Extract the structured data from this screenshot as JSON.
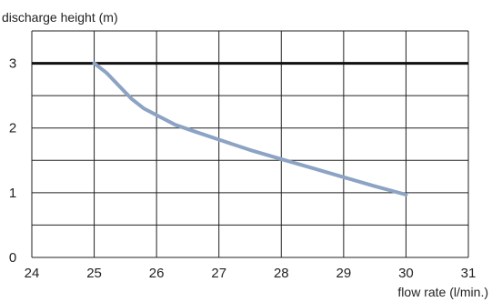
{
  "chart_data": {
    "type": "line",
    "title": "",
    "xlabel": "flow rate (l/min.)",
    "ylabel": "discharge height (m)",
    "xlim": [
      24,
      31
    ],
    "ylim": [
      0,
      3.5
    ],
    "x_ticks": [
      "24",
      "25",
      "26",
      "27",
      "28",
      "29",
      "30",
      "31"
    ],
    "y_ticks": [
      "0",
      "1",
      "2",
      "3"
    ],
    "grid": true,
    "reference_line": {
      "y": 3
    },
    "series": [
      {
        "color": "#8ca3c4",
        "points": [
          [
            25.0,
            3.0
          ],
          [
            25.2,
            2.85
          ],
          [
            25.4,
            2.65
          ],
          [
            25.6,
            2.45
          ],
          [
            25.8,
            2.3
          ],
          [
            26.0,
            2.2
          ],
          [
            26.3,
            2.05
          ],
          [
            26.6,
            1.95
          ],
          [
            27.0,
            1.82
          ],
          [
            27.5,
            1.66
          ],
          [
            28.0,
            1.52
          ],
          [
            28.5,
            1.38
          ],
          [
            29.0,
            1.24
          ],
          [
            29.5,
            1.1
          ],
          [
            30.0,
            0.97
          ]
        ]
      }
    ]
  }
}
